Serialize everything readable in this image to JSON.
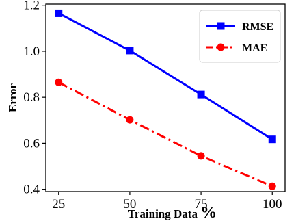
{
  "chart_data": {
    "type": "line",
    "x": [
      25,
      50,
      75,
      100
    ],
    "xticks": [
      25,
      50,
      75,
      100
    ],
    "xtick_labels": [
      "25",
      "50",
      "75",
      "100"
    ],
    "yticks": [
      0.4,
      0.6,
      0.8,
      1.0,
      1.2
    ],
    "ytick_labels": [
      "0.4",
      "0.6",
      "0.8",
      "1.0",
      "1.2"
    ],
    "xlim": [
      20.5,
      104.5
    ],
    "ylim": [
      0.39,
      1.205
    ],
    "xlabel": "Training Data",
    "xlabel_suffix": "%",
    "ylabel": "Error",
    "title": "",
    "grid": false,
    "legend_position": "top-right",
    "series": [
      {
        "name": "RMSE",
        "values": [
          1.165,
          1.003,
          0.812,
          0.617
        ],
        "color": "#0000ff",
        "marker": "square",
        "linestyle": "solid"
      },
      {
        "name": "MAE",
        "values": [
          0.865,
          0.702,
          0.545,
          0.413
        ],
        "color": "#ff0000",
        "marker": "circle",
        "linestyle": "dashdot"
      }
    ]
  }
}
